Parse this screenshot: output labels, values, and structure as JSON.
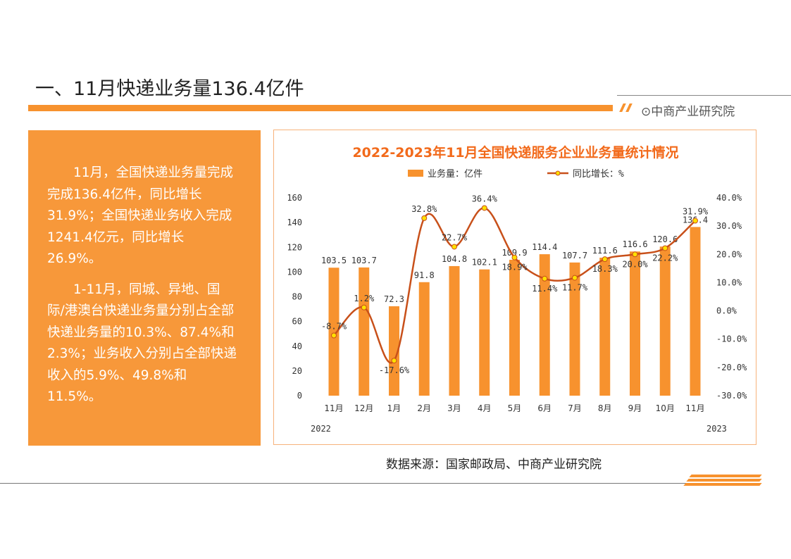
{
  "header": {
    "title": "一、11月快递业务量136.4亿件",
    "brand": "⊙中商产业研究院"
  },
  "panel": {
    "paragraphs": [
      "11月，全国快递业务量完成完成136.4亿件，同比增长31.9%；全国快递业务收入完成1241.4亿元，同比增长26.9%。",
      "1-11月，同城、异地、国际/港澳台快递业务量分别占全部快递业务量的10.3%、87.4%和2.3%；业务收入分别占全部快递收入的5.9%、49.8%和11.5%。"
    ]
  },
  "source": "数据来源：国家邮政局、中商产业研究院",
  "colors": {
    "accent": "#f7922e",
    "bar": "#f7922e",
    "line": "#c8501a",
    "marker": "#ffe000",
    "title": "#f26a1b"
  },
  "chart_data": {
    "type": "bar+line",
    "title": "2022-2023年11月全国快递服务企业业务量统计情况",
    "categories": [
      "11月",
      "12月",
      "1月",
      "2月",
      "3月",
      "4月",
      "5月",
      "6月",
      "7月",
      "8月",
      "9月",
      "10月",
      "11月"
    ],
    "year_labels": {
      "start": "2022",
      "end": "2023"
    },
    "series": [
      {
        "name": "业务量：亿件",
        "type": "bar",
        "axis": "left",
        "values": [
          103.5,
          103.7,
          72.3,
          91.8,
          104.8,
          102.1,
          109.9,
          114.4,
          107.7,
          111.6,
          116.6,
          120.6,
          136.4
        ]
      },
      {
        "name": "同比增长：%",
        "type": "line",
        "axis": "right",
        "smooth": true,
        "values": [
          -8.7,
          1.2,
          -17.6,
          32.8,
          22.7,
          36.4,
          18.9,
          11.4,
          11.7,
          18.3,
          20.0,
          22.2,
          31.9
        ]
      }
    ],
    "left_axis": {
      "ylim": [
        0,
        160
      ],
      "ticks": [
        "0",
        "20",
        "40",
        "60",
        "80",
        "100",
        "120",
        "140",
        "160"
      ]
    },
    "right_axis": {
      "ylim": [
        -30,
        40
      ],
      "ticks": [
        "-30.0%",
        "-20.0%",
        "-10.0%",
        "0.0%",
        "10.0%",
        "20.0%",
        "30.0%",
        "40.0%"
      ]
    },
    "legend": "top",
    "grid": false
  }
}
